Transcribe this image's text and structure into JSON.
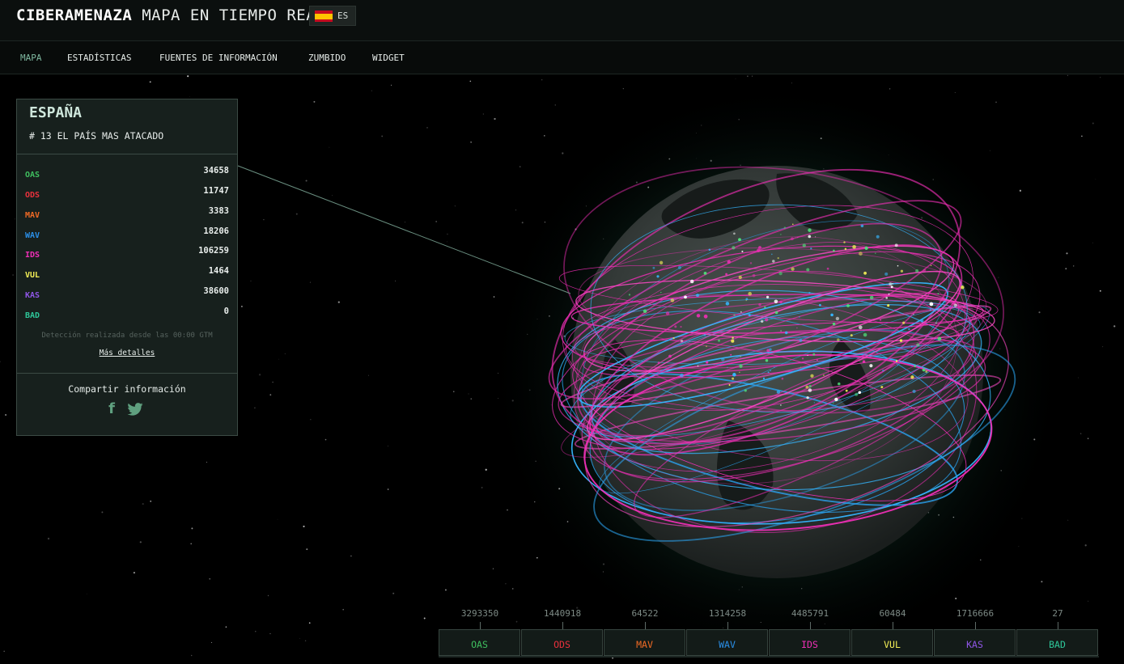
{
  "header": {
    "brand_bold": "CIBERAMENAZA",
    "brand_rest": "MAPA EN TIEMPO REAL",
    "language_code": "ES"
  },
  "nav": {
    "items": [
      {
        "label": "MAPA",
        "active": true
      },
      {
        "label": "ESTADÍSTICAS",
        "active": false
      },
      {
        "label": "FUENTES DE INFORMACIÓN",
        "active": false
      },
      {
        "label": "ZUMBIDO",
        "active": false
      },
      {
        "label": "WIDGET",
        "active": false
      }
    ]
  },
  "country_panel": {
    "country": "ESPAÑA",
    "rank_text": "# 13 EL PAÍS MAS ATACADO",
    "stats": [
      {
        "label": "OAS",
        "value": "34658",
        "color": "#3fbf5f"
      },
      {
        "label": "ODS",
        "value": "11747",
        "color": "#e8313d"
      },
      {
        "label": "MAV",
        "value": "3383",
        "color": "#f06a25"
      },
      {
        "label": "WAV",
        "value": "18206",
        "color": "#2a8fe8"
      },
      {
        "label": "IDS",
        "value": "106259",
        "color": "#ef2fb6"
      },
      {
        "label": "VUL",
        "value": "1464",
        "color": "#f3ee56"
      },
      {
        "label": "KAS",
        "value": "38600",
        "color": "#8f56e6"
      },
      {
        "label": "BAD",
        "value": "0",
        "color": "#2ec79a"
      }
    ],
    "since_text": "Detección realizada desde las 00:00 GTM",
    "more_link": "Más detalles",
    "share_text": "Compartir información",
    "icons": [
      "facebook-icon",
      "twitter-icon"
    ]
  },
  "totals": [
    {
      "label": "OAS",
      "value": "3293350",
      "color": "#3fbf5f"
    },
    {
      "label": "ODS",
      "value": "1440918",
      "color": "#e8313d"
    },
    {
      "label": "MAV",
      "value": "64522",
      "color": "#f06a25"
    },
    {
      "label": "WAV",
      "value": "1314258",
      "color": "#2a8fe8"
    },
    {
      "label": "IDS",
      "value": "4485791",
      "color": "#ef2fb6"
    },
    {
      "label": "VUL",
      "value": "60484",
      "color": "#f3ee56"
    },
    {
      "label": "KAS",
      "value": "1716666",
      "color": "#8f56e6"
    },
    {
      "label": "BAD",
      "value": "27",
      "color": "#2ec79a"
    }
  ]
}
